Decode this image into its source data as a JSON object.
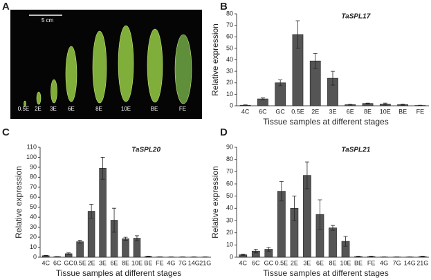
{
  "panel_a": {
    "label": "A",
    "scale_label": "5 cm",
    "stages": [
      "0.5E",
      "2E",
      "3E",
      "6E",
      "8E",
      "10E",
      "BE",
      "FE"
    ]
  },
  "chart_data": [
    {
      "type": "bar",
      "panel": "B",
      "title": "TaSPL17",
      "ylabel": "Relative expression",
      "xlabel": "Tissue samples at different stages",
      "categories": [
        "4C",
        "6C",
        "GC",
        "0.5E",
        "2E",
        "3E",
        "6E",
        "8E",
        "10E",
        "BE",
        "FE"
      ],
      "values": [
        0.5,
        6,
        20,
        62,
        39,
        24,
        1,
        2,
        1.5,
        1,
        0.3
      ],
      "errors": [
        0.3,
        0.8,
        2.5,
        12,
        6.5,
        6,
        0.3,
        0.3,
        0.8,
        0.5,
        0.2
      ],
      "color": "#555555",
      "ylim": [
        0,
        80
      ],
      "yticks": [
        0,
        10,
        20,
        30,
        40,
        50,
        60,
        70,
        80
      ]
    },
    {
      "type": "bar",
      "panel": "C",
      "title": "TaSPL20",
      "ylabel": "Relative expression",
      "xlabel": "Tissue samples at different stages",
      "categories": [
        "4C",
        "6C",
        "GC",
        "0.5E",
        "2E",
        "3E",
        "6E",
        "8E",
        "10E",
        "BE",
        "FE",
        "4G",
        "7G",
        "14G",
        "21G"
      ],
      "values": [
        1.5,
        0.5,
        3.5,
        15.5,
        46,
        89,
        37,
        18.5,
        19,
        0.8,
        0.3,
        0.2,
        0.2,
        0.2,
        0.2
      ],
      "errors": [
        0.3,
        0.2,
        0.8,
        1.5,
        7,
        11,
        12,
        1.5,
        2.5,
        0.3,
        0.1,
        0.1,
        0.1,
        0.1,
        0.1
      ],
      "color": "#555555",
      "ylim": [
        0,
        110
      ],
      "yticks": [
        0,
        10,
        20,
        30,
        40,
        50,
        60,
        70,
        80,
        90,
        100,
        110
      ]
    },
    {
      "type": "bar",
      "panel": "D",
      "title": "TaSPL21",
      "ylabel": "Relative expression",
      "xlabel": "Tissue samples at different stages",
      "categories": [
        "4C",
        "6C",
        "GC",
        "0.5E",
        "2E",
        "3E",
        "6E",
        "8E",
        "10E",
        "BE",
        "FE",
        "4G",
        "7G",
        "14G",
        "21G"
      ],
      "values": [
        2,
        5,
        6.5,
        54,
        40,
        67,
        35,
        24,
        13,
        0.5,
        0.5,
        0.2,
        0.2,
        0.2,
        0.5
      ],
      "errors": [
        0.5,
        1.5,
        1.5,
        8,
        10,
        11,
        12,
        2,
        4,
        0.3,
        0.3,
        0.1,
        0.1,
        0.1,
        0.3
      ],
      "color": "#555555",
      "ylim": [
        0,
        90
      ],
      "yticks": [
        0,
        10,
        20,
        30,
        40,
        50,
        60,
        70,
        80,
        90
      ]
    }
  ]
}
